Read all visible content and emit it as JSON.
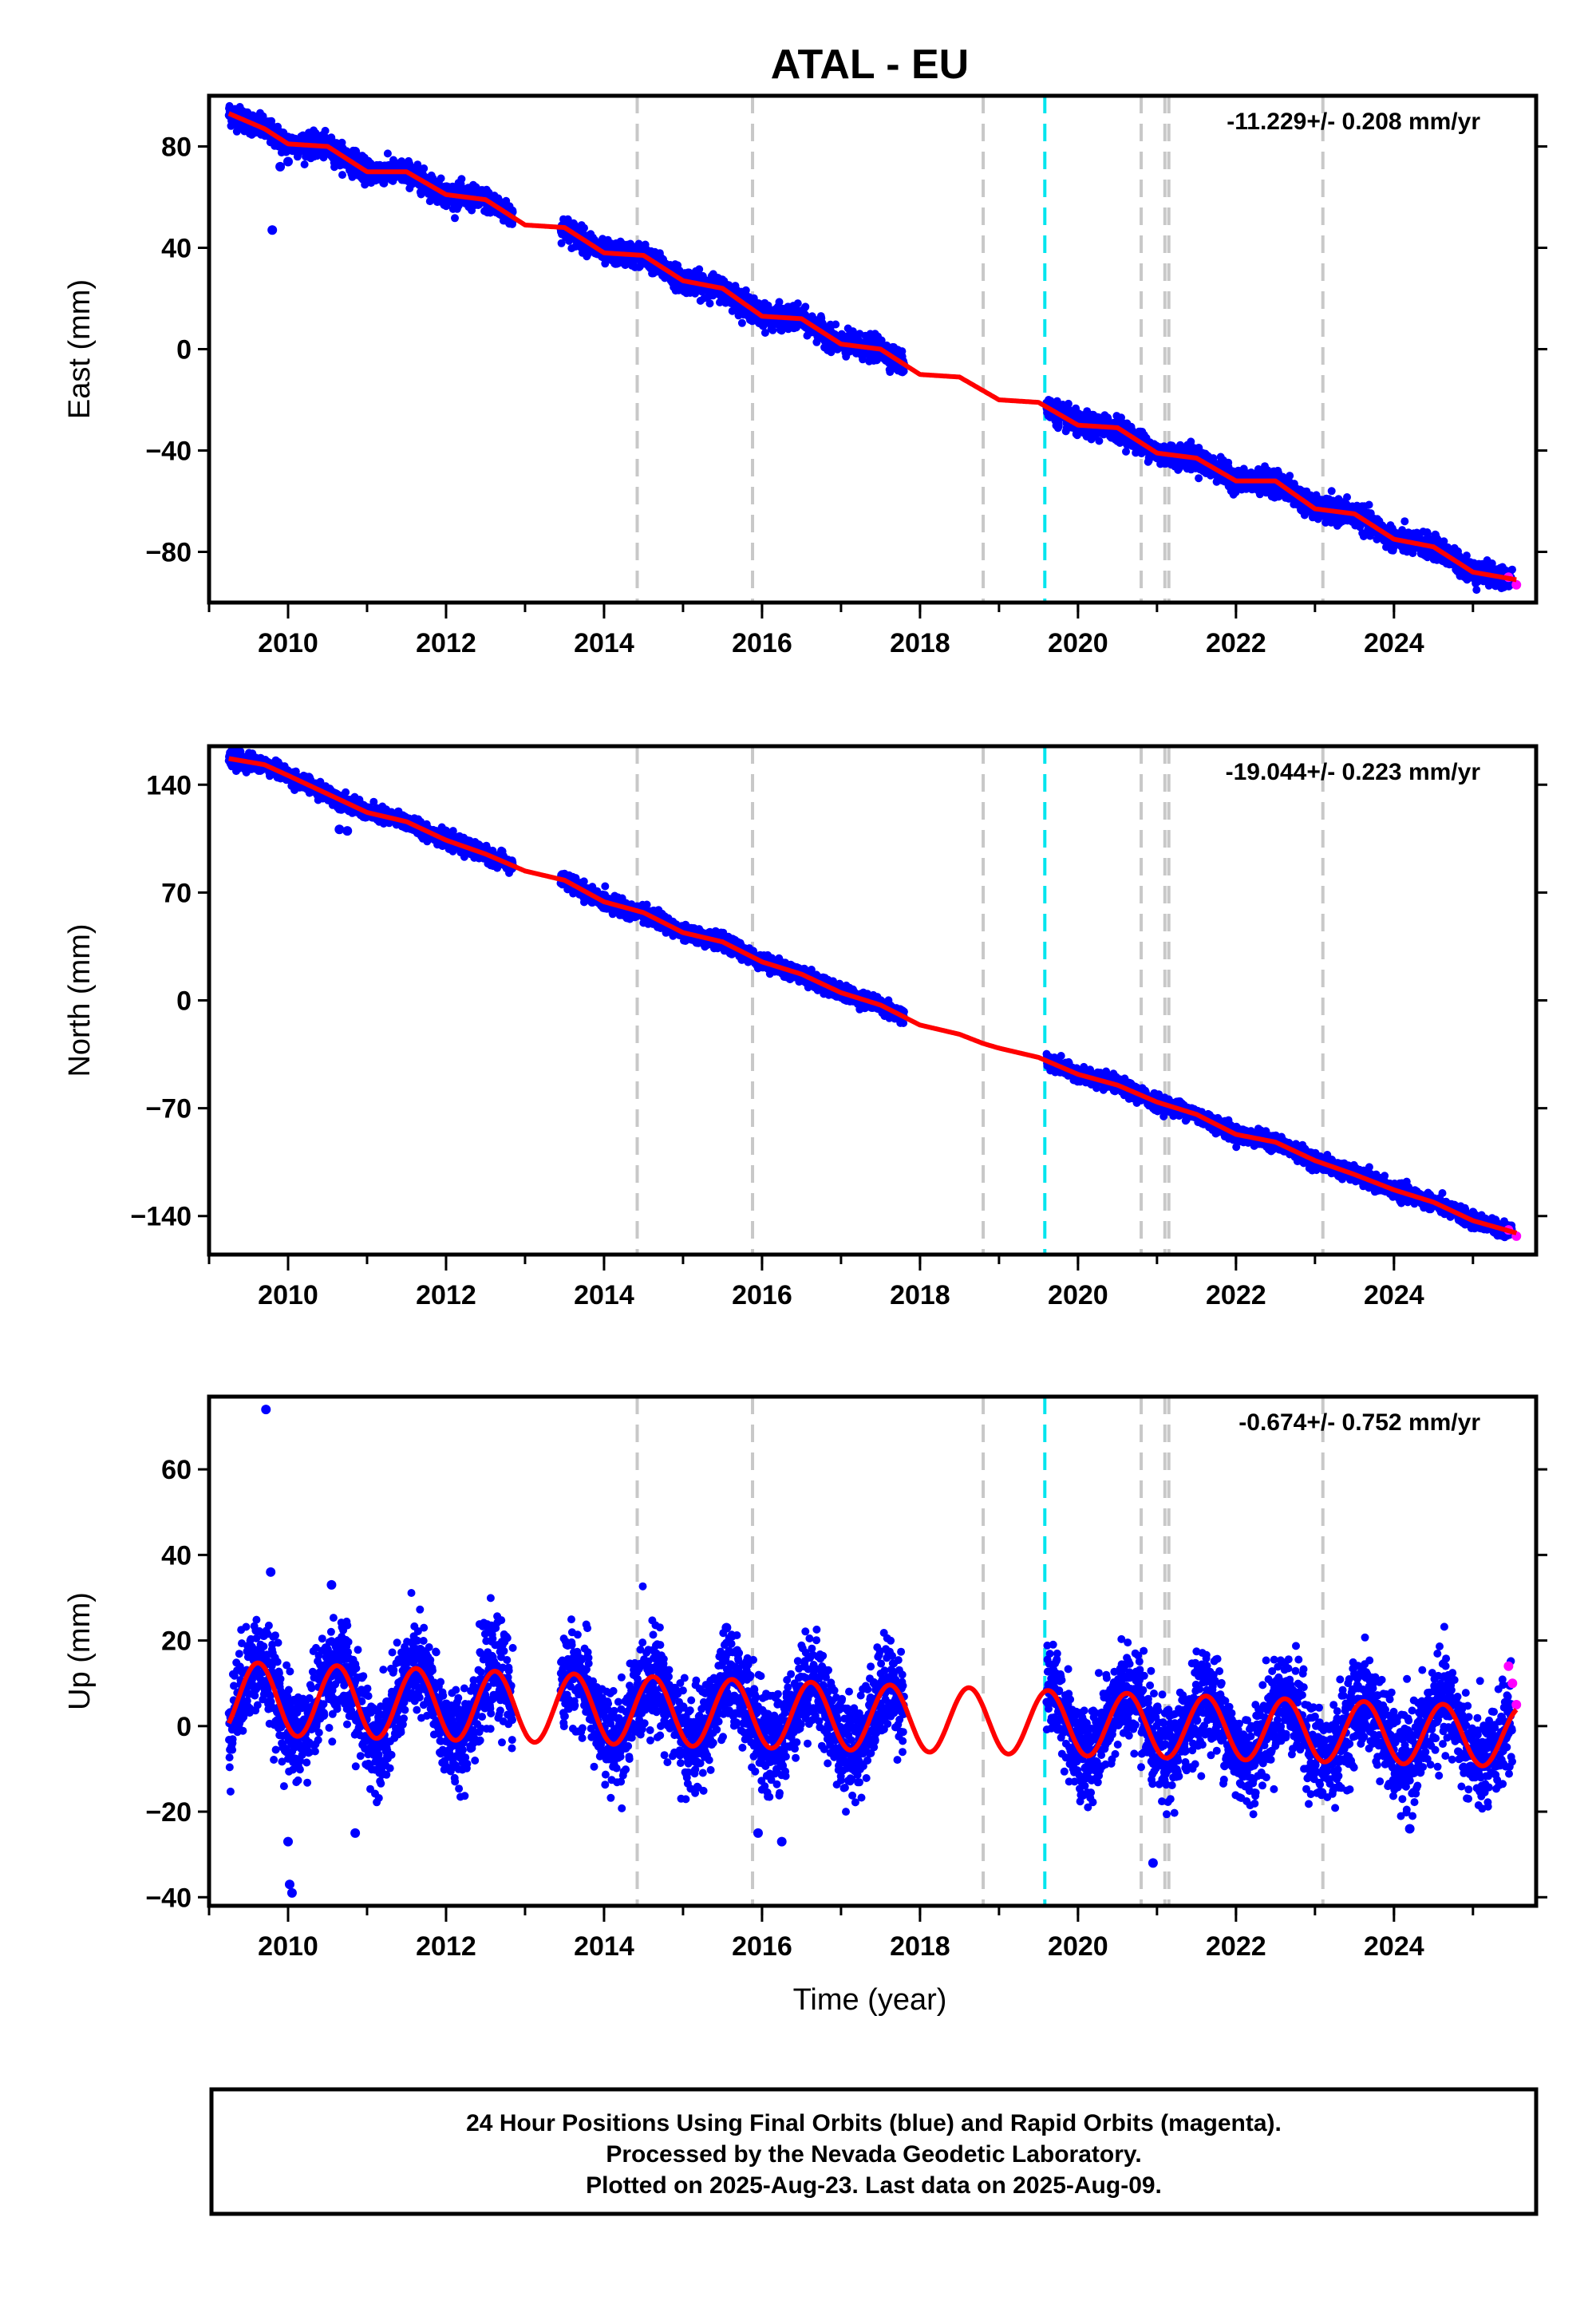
{
  "title": "ATAL - EU",
  "xlabel": "Time (year)",
  "footer": {
    "lines": [
      "24 Hour Positions Using Final Orbits (blue) and Rapid Orbits (magenta).",
      "Processed by the Nevada Geodetic Laboratory.",
      "Plotted on 2025-Aug-23. Last data on 2025-Aug-09."
    ]
  },
  "colors": {
    "final_orbits": "#0000ff",
    "rapid_orbits": "#ff00ff",
    "model_fit": "#ff0000",
    "equipment_change": "#c8c8c8",
    "earthquake": "#00e5ee"
  },
  "chart_data": [
    {
      "type": "scatter",
      "ylabel": "East (mm)",
      "rate_label": "-11.229+/- 0.208 mm/yr",
      "xlim": [
        2009.0,
        2025.8
      ],
      "ylim": [
        -100,
        100
      ],
      "xticks": [
        2010,
        2012,
        2014,
        2016,
        2018,
        2020,
        2022,
        2024
      ],
      "xtick_labels": [
        "2010",
        "2012",
        "2014",
        "2016",
        "2018",
        "2020",
        "2022",
        "2024"
      ],
      "yticks": [
        80,
        40,
        0,
        -40,
        -80
      ],
      "ytick_labels": [
        "80",
        "40",
        "0",
        "−40",
        "−80"
      ],
      "model": {
        "x": [
          2009.25,
          2009.7,
          2010.0,
          2010.5,
          2011.0,
          2011.5,
          2012.0,
          2012.5,
          2013.0,
          2013.5,
          2014.0,
          2014.5,
          2015.0,
          2015.5,
          2016.0,
          2016.5,
          2017.0,
          2017.5,
          2018.0,
          2018.5,
          2019.0,
          2019.5,
          2020.0,
          2020.5,
          2021.0,
          2021.5,
          2022.0,
          2022.5,
          2023.0,
          2023.5,
          2024.0,
          2024.5,
          2025.0,
          2025.55
        ],
        "y": [
          93,
          87,
          81,
          80,
          70,
          70,
          61,
          59,
          49,
          48,
          38,
          37,
          27,
          24,
          13,
          12,
          2,
          0,
          -10,
          -11,
          -20,
          -21,
          -30,
          -31,
          -41,
          -43,
          -52,
          -52,
          -63,
          -65,
          -75,
          -78,
          -88,
          -91
        ]
      },
      "scatter": {
        "ranges": [
          [
            2009.25,
            2012.85
          ],
          [
            2013.45,
            2017.8
          ],
          [
            2019.6,
            2025.5
          ]
        ],
        "spread": 2.2,
        "outliers": [
          [
            2009.8,
            47
          ],
          [
            2010.0,
            74
          ],
          [
            2009.9,
            72
          ],
          [
            2010.85,
            78
          ]
        ]
      },
      "rapid": {
        "x": [
          2025.45,
          2025.55
        ],
        "y": [
          -90,
          -93
        ]
      },
      "vlines_equipment": [
        2014.42,
        2015.88,
        2018.8,
        2020.8,
        2021.1,
        2021.15,
        2023.1
      ],
      "vlines_earthquake": [
        2019.58
      ]
    },
    {
      "type": "scatter",
      "ylabel": "North (mm)",
      "rate_label": "-19.044+/- 0.223 mm/yr",
      "xlim": [
        2009.0,
        2025.8
      ],
      "ylim": [
        -165,
        165
      ],
      "xticks": [
        2010,
        2012,
        2014,
        2016,
        2018,
        2020,
        2022,
        2024
      ],
      "xtick_labels": [
        "2010",
        "2012",
        "2014",
        "2016",
        "2018",
        "2020",
        "2022",
        "2024"
      ],
      "yticks": [
        140,
        70,
        0,
        -70,
        -140
      ],
      "ytick_labels": [
        "140",
        "70",
        "0",
        "−70",
        "−140"
      ],
      "model": {
        "x": [
          2009.25,
          2009.7,
          2010.0,
          2010.5,
          2011.0,
          2011.5,
          2012.0,
          2012.5,
          2013.0,
          2013.5,
          2014.0,
          2014.5,
          2015.0,
          2015.5,
          2016.0,
          2016.5,
          2017.0,
          2017.5,
          2018.0,
          2018.5,
          2018.8,
          2019.0,
          2019.5,
          2020.0,
          2020.5,
          2021.0,
          2021.5,
          2022.0,
          2022.5,
          2023.0,
          2023.5,
          2024.0,
          2024.5,
          2025.0,
          2025.55
        ],
        "y": [
          157,
          153,
          146,
          134,
          122,
          116,
          104,
          95,
          84,
          78,
          64,
          57,
          44,
          38,
          25,
          17,
          5,
          -3,
          -16,
          -22,
          -28,
          -31,
          -37,
          -48,
          -55,
          -66,
          -74,
          -87,
          -92,
          -104,
          -113,
          -123,
          -131,
          -143,
          -151
        ]
      },
      "scatter": {
        "ranges": [
          [
            2009.25,
            2012.85
          ],
          [
            2013.45,
            2017.8
          ],
          [
            2019.6,
            2025.5
          ]
        ],
        "spread": 2.4,
        "outliers": [
          [
            2010.65,
            111
          ],
          [
            2010.75,
            110
          ],
          [
            2013.85,
            64
          ]
        ]
      },
      "rapid": {
        "x": [
          2025.45,
          2025.55
        ],
        "y": [
          -149,
          -153
        ]
      },
      "vlines_equipment": [
        2014.42,
        2015.88,
        2018.8,
        2020.8,
        2021.1,
        2021.15,
        2023.1
      ],
      "vlines_earthquake": [
        2019.58
      ]
    },
    {
      "type": "scatter",
      "ylabel": "Up (mm)",
      "rate_label": "-0.674+/- 0.752 mm/yr",
      "xlim": [
        2009.0,
        2025.8
      ],
      "ylim": [
        -42,
        77
      ],
      "xticks": [
        2010,
        2012,
        2014,
        2016,
        2018,
        2020,
        2022,
        2024
      ],
      "xtick_labels": [
        "2010",
        "2012",
        "2014",
        "2016",
        "2018",
        "2020",
        "2022",
        "2024"
      ],
      "yticks": [
        60,
        40,
        20,
        0,
        -20,
        -40
      ],
      "ytick_labels": [
        "60",
        "40",
        "20",
        "0",
        "−20",
        "−40"
      ],
      "model": {
        "form": "offset + amplitude * sin(2*pi*(t - phase))",
        "offset_start": 6.5,
        "offset_end": -2.5,
        "amplitude_start": 8.5,
        "amplitude_end": 7.0,
        "phase": 0.37,
        "x_start": 2009.25,
        "x_end": 2025.55
      },
      "scatter": {
        "ranges": [
          [
            2009.25,
            2012.85
          ],
          [
            2013.45,
            2017.8
          ],
          [
            2019.6,
            2025.5
          ]
        ],
        "spread": 5.5,
        "outliers": [
          [
            2009.72,
            74
          ],
          [
            2009.78,
            36
          ],
          [
            2010.0,
            -27
          ],
          [
            2010.02,
            -37
          ],
          [
            2010.05,
            -39
          ],
          [
            2010.55,
            33
          ],
          [
            2010.85,
            -25
          ],
          [
            2015.55,
            23
          ],
          [
            2015.95,
            -25
          ],
          [
            2016.25,
            -27
          ],
          [
            2020.95,
            -32
          ],
          [
            2024.2,
            -24
          ]
        ]
      },
      "rapid": {
        "x": [
          2025.45,
          2025.5,
          2025.55
        ],
        "y": [
          14,
          10,
          5
        ]
      },
      "vlines_equipment": [
        2014.42,
        2015.88,
        2018.8,
        2020.8,
        2021.1,
        2021.15,
        2023.1
      ],
      "vlines_earthquake": [
        2019.58
      ]
    }
  ]
}
